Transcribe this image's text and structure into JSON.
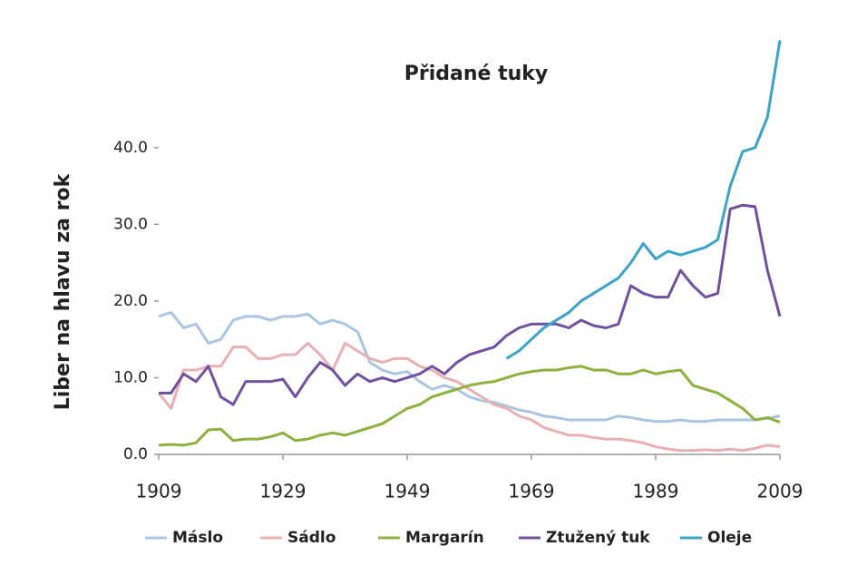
{
  "chart_data": {
    "type": "line",
    "title": "Přidané tuky",
    "y_label": "Liber na hlavu za rok",
    "x": [
      1909,
      1911,
      1913,
      1915,
      1917,
      1919,
      1921,
      1923,
      1925,
      1927,
      1929,
      1931,
      1933,
      1935,
      1937,
      1939,
      1941,
      1943,
      1945,
      1947,
      1949,
      1951,
      1953,
      1955,
      1957,
      1959,
      1961,
      1963,
      1965,
      1967,
      1969,
      1971,
      1973,
      1975,
      1977,
      1979,
      1981,
      1983,
      1985,
      1987,
      1989,
      1991,
      1993,
      1995,
      1997,
      1999,
      2001,
      2003,
      2005,
      2007,
      2009
    ],
    "series": [
      {
        "name": "Máslo",
        "color": "#a9c5e2",
        "values": [
          18,
          18.5,
          16.5,
          17,
          14.5,
          15,
          17.5,
          18,
          18,
          17.5,
          18,
          18,
          18.3,
          17,
          17.5,
          17,
          16,
          12,
          11,
          10.5,
          10.8,
          9.5,
          8.5,
          9,
          8.5,
          7.5,
          7,
          6.8,
          6.3,
          5.8,
          5.5,
          5,
          4.8,
          4.5,
          4.5,
          4.5,
          4.5,
          5,
          4.8,
          4.5,
          4.3,
          4.3,
          4.5,
          4.3,
          4.3,
          4.5,
          4.5,
          4.5,
          4.5,
          4.7,
          5
        ]
      },
      {
        "name": "Sádlo",
        "color": "#e8b0b2",
        "values": [
          8,
          6,
          11,
          11,
          11.5,
          11.5,
          14,
          14,
          12.5,
          12.5,
          13,
          13,
          14.5,
          13,
          11,
          14.5,
          13.5,
          12.5,
          12,
          12.5,
          12.5,
          11.5,
          11,
          10,
          9.5,
          8.5,
          7.5,
          6.5,
          6,
          5,
          4.5,
          3.5,
          3,
          2.5,
          2.5,
          2.2,
          2,
          2,
          1.8,
          1.5,
          1,
          0.7,
          0.5,
          0.5,
          0.6,
          0.5,
          0.7,
          0.5,
          0.8,
          1.2,
          1
        ]
      },
      {
        "name": "Margarín",
        "color": "#8db03e",
        "values": [
          1.2,
          1.3,
          1.2,
          1.5,
          3.2,
          3.3,
          1.8,
          2,
          2,
          2.3,
          2.8,
          1.8,
          2,
          2.5,
          2.8,
          2.5,
          3,
          3.5,
          4,
          5,
          6,
          6.5,
          7.5,
          8,
          8.5,
          9,
          9.3,
          9.5,
          10,
          10.5,
          10.8,
          11,
          11,
          11.3,
          11.5,
          11,
          11,
          10.5,
          10.5,
          11,
          10.5,
          10.8,
          11,
          9,
          8.5,
          8,
          7,
          6,
          4.5,
          4.8,
          4.2
        ]
      },
      {
        "name": "Ztužený tuk",
        "color": "#7050a0",
        "values": [
          8,
          8,
          10.5,
          9.5,
          11.5,
          7.5,
          6.5,
          9.5,
          9.5,
          9.5,
          9.8,
          7.5,
          10,
          12,
          11,
          9,
          10.5,
          9.5,
          10,
          9.5,
          10,
          10.5,
          11.5,
          10.5,
          12,
          13,
          13.5,
          14,
          15.5,
          16.5,
          17,
          17,
          17,
          16.5,
          17.5,
          16.8,
          16.5,
          17,
          22,
          21,
          20.5,
          20.5,
          24,
          22,
          20.5,
          21,
          32,
          32.5,
          32.3,
          24,
          18
        ]
      },
      {
        "name": "Oleje",
        "color": "#3aa3c6",
        "values": [
          null,
          null,
          null,
          null,
          null,
          null,
          null,
          null,
          null,
          null,
          null,
          null,
          null,
          null,
          null,
          null,
          null,
          null,
          null,
          null,
          null,
          null,
          null,
          null,
          null,
          null,
          null,
          null,
          12.5,
          13.5,
          15,
          16.5,
          17.5,
          18.5,
          20,
          21,
          22,
          23,
          25,
          27.5,
          25.5,
          26.5,
          26,
          26.5,
          27,
          28,
          35,
          39.5,
          40,
          44,
          54
        ]
      }
    ],
    "xlim": [
      1909,
      2009
    ],
    "xticks": [
      1909,
      1929,
      1949,
      1969,
      1989,
      2009
    ],
    "ylim": [
      0,
      55
    ],
    "yticks": [
      {
        "value": 0,
        "label": "0.0"
      },
      {
        "value": 10,
        "label": "10.0"
      },
      {
        "value": 20,
        "label": "20.0"
      },
      {
        "value": 30,
        "label": "30.0"
      },
      {
        "value": 40,
        "label": "40.0"
      }
    ]
  }
}
